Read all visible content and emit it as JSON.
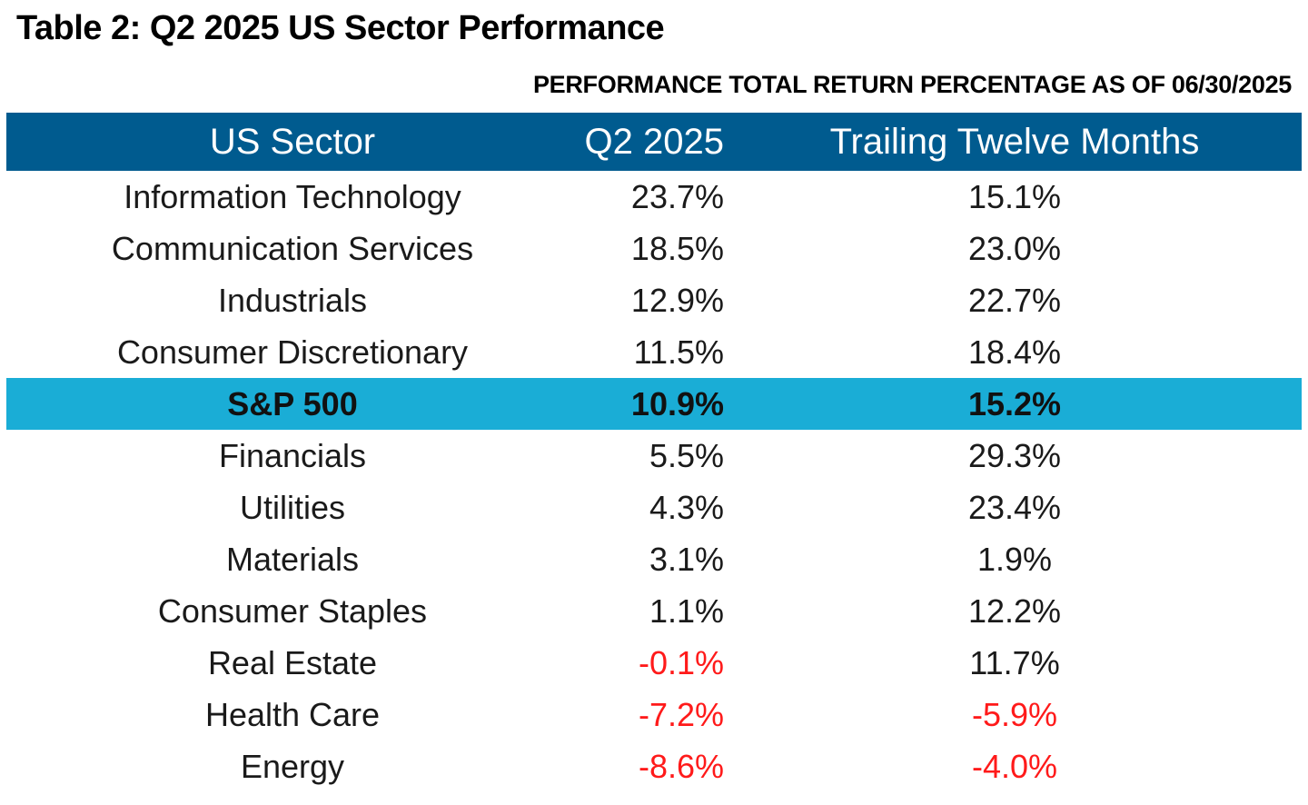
{
  "title": "Table 2: Q2 2025 US Sector Performance",
  "subtitle": "PERFORMANCE TOTAL RETURN PERCENTAGE AS OF 06/30/2025",
  "colors": {
    "header_bg": "#005b8f",
    "highlight_bg": "#1aadd6",
    "negative_text": "#ff1a1a"
  },
  "table": {
    "headers": {
      "sector": "US Sector",
      "q2": "Q2 2025",
      "ttm": "Trailing Twelve Months"
    },
    "rows": [
      {
        "sector": "Information Technology",
        "q2": "23.7%",
        "ttm": "15.1%"
      },
      {
        "sector": "Communication Services",
        "q2": "18.5%",
        "ttm": "23.0%"
      },
      {
        "sector": "Industrials",
        "q2": "12.9%",
        "ttm": "22.7%"
      },
      {
        "sector": "Consumer Discretionary",
        "q2": "11.5%",
        "ttm": "18.4%"
      },
      {
        "sector": "S&P 500",
        "q2": "10.9%",
        "ttm": "15.2%"
      },
      {
        "sector": "Financials",
        "q2": "5.5%",
        "ttm": "29.3%"
      },
      {
        "sector": "Utilities",
        "q2": "4.3%",
        "ttm": "23.4%"
      },
      {
        "sector": "Materials",
        "q2": "3.1%",
        "ttm": "1.9%"
      },
      {
        "sector": "Consumer Staples",
        "q2": "1.1%",
        "ttm": "12.2%"
      },
      {
        "sector": "Real Estate",
        "q2": "-0.1%",
        "ttm": "11.7%"
      },
      {
        "sector": "Health Care",
        "q2": "-7.2%",
        "ttm": "-5.9%"
      },
      {
        "sector": "Energy",
        "q2": "-8.6%",
        "ttm": "-4.0%"
      }
    ]
  }
}
